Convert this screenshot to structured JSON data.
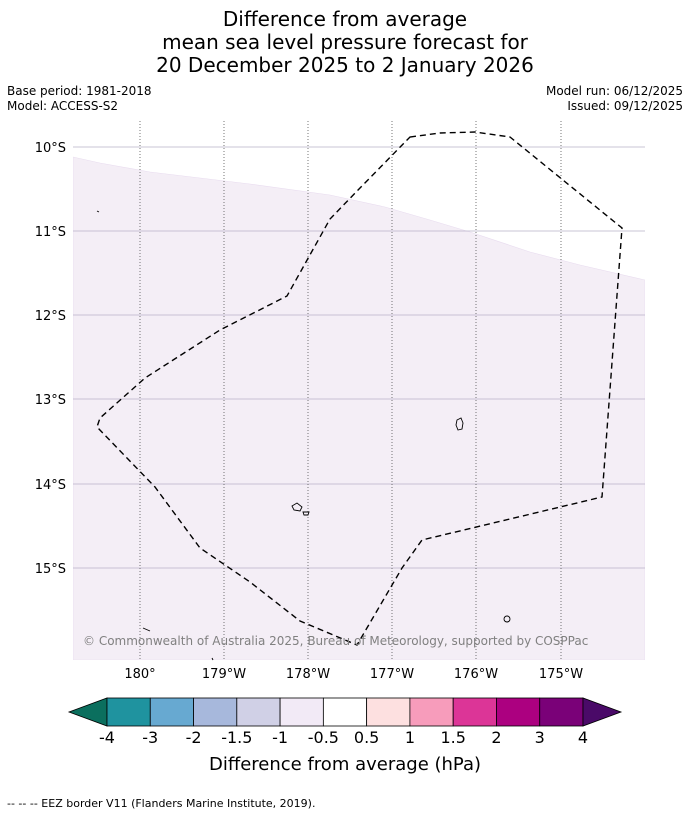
{
  "title": {
    "line1": "Difference from average",
    "line2": "mean sea level pressure forecast for",
    "line3": "20 December 2025 to 2 January 2026"
  },
  "meta": {
    "base_period": "Base period: 1981-2018",
    "model": "Model: ACCESS-S2",
    "model_run": "Model run: 06/12/2025",
    "issued": "Issued: 09/12/2025"
  },
  "map": {
    "lat_labels": [
      "10°S",
      "11°S",
      "12°S",
      "13°S",
      "14°S",
      "15°S"
    ],
    "lon_labels": [
      "180°",
      "179°W",
      "178°W",
      "177°W",
      "176°W",
      "175°W"
    ],
    "copyright": "© Commonwealth of Australia 2025, Bureau of Meteorology, supported by COSPPac",
    "colors": {
      "shade_light": "#f4eef6",
      "eez_border": "#000000"
    }
  },
  "colorbar": {
    "title": "Difference from average (hPa)",
    "tick_labels": [
      "-4",
      "-3",
      "-2",
      "-1.5",
      "-1",
      "-0.5",
      "0.5",
      "1",
      "1.5",
      "2",
      "3",
      "4"
    ],
    "colors": [
      "#0b6f5e",
      "#1f939f",
      "#67a9d1",
      "#a7b8dc",
      "#d0d0e6",
      "#f2eaf6",
      "#ffffff",
      "#fde0e0",
      "#f79cbb",
      "#dc3597",
      "#ac0080",
      "#7a0178",
      "#4a0a68"
    ]
  },
  "footer": {
    "legend_text": "--  --  -- EEZ border V11 (Flanders Marine Institute, 2019)."
  }
}
